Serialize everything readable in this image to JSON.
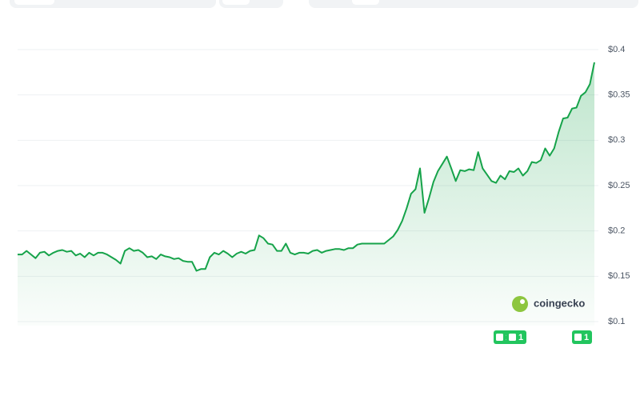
{
  "chart_data": {
    "type": "area",
    "color": "#16a34a",
    "ylim": [
      0.1,
      0.4
    ],
    "yticks": [
      {
        "value": 0.4,
        "label": "$0.4"
      },
      {
        "value": 0.35,
        "label": "$0.35"
      },
      {
        "value": 0.3,
        "label": "$0.3"
      },
      {
        "value": 0.25,
        "label": "$0.25"
      },
      {
        "value": 0.2,
        "label": "$0.2"
      },
      {
        "value": 0.15,
        "label": "$0.15"
      },
      {
        "value": 0.1,
        "label": "$0.1"
      }
    ],
    "grid": true,
    "values": [
      0.174,
      0.174,
      0.178,
      0.174,
      0.17,
      0.176,
      0.177,
      0.173,
      0.176,
      0.178,
      0.179,
      0.177,
      0.178,
      0.173,
      0.175,
      0.171,
      0.176,
      0.173,
      0.176,
      0.176,
      0.174,
      0.171,
      0.168,
      0.164,
      0.178,
      0.181,
      0.178,
      0.179,
      0.176,
      0.171,
      0.172,
      0.169,
      0.174,
      0.172,
      0.171,
      0.169,
      0.17,
      0.167,
      0.166,
      0.166,
      0.156,
      0.158,
      0.158,
      0.171,
      0.176,
      0.174,
      0.178,
      0.175,
      0.171,
      0.175,
      0.177,
      0.175,
      0.178,
      0.179,
      0.195,
      0.192,
      0.186,
      0.185,
      0.178,
      0.178,
      0.186,
      0.176,
      0.174,
      0.176,
      0.176,
      0.175,
      0.178,
      0.179,
      0.176,
      0.178,
      0.179,
      0.18,
      0.18,
      0.179,
      0.181,
      0.181,
      0.185,
      0.186,
      0.186,
      0.186,
      0.186,
      0.186,
      0.186,
      0.19,
      0.194,
      0.201,
      0.211,
      0.225,
      0.241,
      0.246,
      0.269,
      0.22,
      0.236,
      0.254,
      0.266,
      0.274,
      0.282,
      0.269,
      0.255,
      0.267,
      0.266,
      0.268,
      0.267,
      0.287,
      0.269,
      0.262,
      0.255,
      0.253,
      0.261,
      0.257,
      0.266,
      0.265,
      0.269,
      0.261,
      0.266,
      0.276,
      0.275,
      0.278,
      0.291,
      0.283,
      0.291,
      0.309,
      0.324,
      0.325,
      0.335,
      0.336,
      0.349,
      0.353,
      0.362,
      0.386
    ],
    "watermark": "coingecko",
    "annotations": [
      "1",
      "1",
      "1"
    ]
  }
}
